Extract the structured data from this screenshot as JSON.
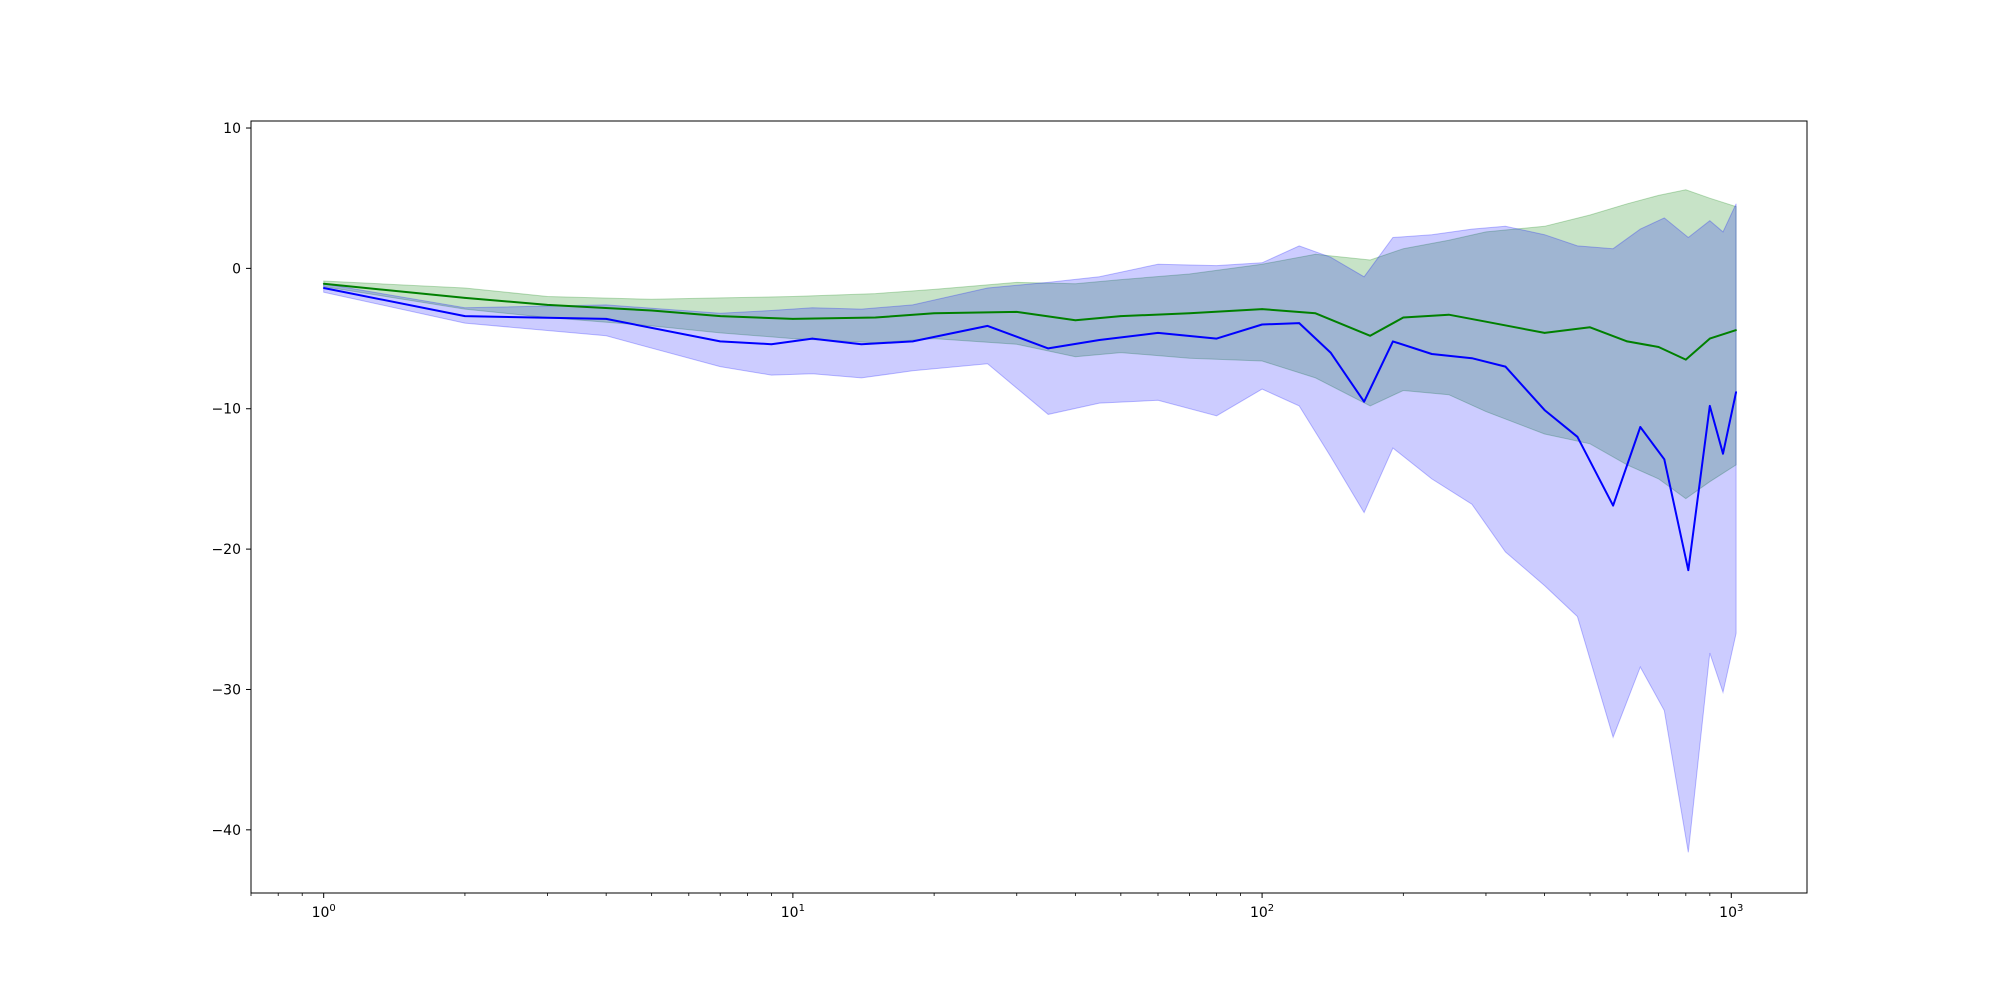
{
  "chart_data": {
    "type": "line",
    "title": "",
    "xlabel": "",
    "ylabel": "",
    "xscale": "log",
    "xlim": [
      0.7,
      1450
    ],
    "ylim": [
      -44.5,
      10.5
    ],
    "grid": false,
    "legend": "none",
    "x_ticks": [
      {
        "value": 1,
        "base": "10",
        "exp": "0"
      },
      {
        "value": 10,
        "base": "10",
        "exp": "1"
      },
      {
        "value": 100,
        "base": "10",
        "exp": "2"
      },
      {
        "value": 1000,
        "base": "10",
        "exp": "3"
      }
    ],
    "y_ticks": [
      {
        "value": 10,
        "label": "10"
      },
      {
        "value": 0,
        "label": "0"
      },
      {
        "value": -10,
        "label": "−10"
      },
      {
        "value": -20,
        "label": "−20"
      },
      {
        "value": -30,
        "label": "−30"
      },
      {
        "value": -40,
        "label": "−40"
      }
    ],
    "series": [
      {
        "color": "#008000",
        "band_color": "#008000",
        "band_opacity": 0.22,
        "points": [
          {
            "x": 1,
            "y": -1.1,
            "lo": -1.3,
            "hi": -0.9
          },
          {
            "x": 2,
            "y": -2.1,
            "lo": -2.9,
            "hi": -1.4
          },
          {
            "x": 3,
            "y": -2.6,
            "lo": -3.5,
            "hi": -2.0
          },
          {
            "x": 5,
            "y": -3.0,
            "lo": -4.1,
            "hi": -2.2
          },
          {
            "x": 7,
            "y": -3.4,
            "lo": -4.6,
            "hi": -2.1
          },
          {
            "x": 10,
            "y": -3.6,
            "lo": -5.0,
            "hi": -2.0
          },
          {
            "x": 15,
            "y": -3.5,
            "lo": -5.3,
            "hi": -1.8
          },
          {
            "x": 20,
            "y": -3.2,
            "lo": -5.0,
            "hi": -1.5
          },
          {
            "x": 30,
            "y": -3.1,
            "lo": -5.4,
            "hi": -1.0
          },
          {
            "x": 40,
            "y": -3.7,
            "lo": -6.3,
            "hi": -1.1
          },
          {
            "x": 50,
            "y": -3.4,
            "lo": -6.0,
            "hi": -0.8
          },
          {
            "x": 70,
            "y": -3.2,
            "lo": -6.4,
            "hi": -0.4
          },
          {
            "x": 100,
            "y": -2.9,
            "lo": -6.6,
            "hi": 0.3
          },
          {
            "x": 130,
            "y": -3.2,
            "lo": -7.8,
            "hi": 1.0
          },
          {
            "x": 170,
            "y": -4.8,
            "lo": -9.8,
            "hi": 0.6
          },
          {
            "x": 200,
            "y": -3.5,
            "lo": -8.7,
            "hi": 1.4
          },
          {
            "x": 250,
            "y": -3.3,
            "lo": -9.0,
            "hi": 2.0
          },
          {
            "x": 300,
            "y": -3.8,
            "lo": -10.2,
            "hi": 2.6
          },
          {
            "x": 400,
            "y": -4.6,
            "lo": -11.8,
            "hi": 3.0
          },
          {
            "x": 500,
            "y": -4.2,
            "lo": -12.5,
            "hi": 3.8
          },
          {
            "x": 600,
            "y": -5.2,
            "lo": -14.0,
            "hi": 4.6
          },
          {
            "x": 700,
            "y": -5.6,
            "lo": -15.0,
            "hi": 5.2
          },
          {
            "x": 800,
            "y": -6.5,
            "lo": -16.4,
            "hi": 5.6
          },
          {
            "x": 900,
            "y": -5.0,
            "lo": -15.2,
            "hi": 5.0
          },
          {
            "x": 1024,
            "y": -4.4,
            "lo": -14.0,
            "hi": 4.4
          }
        ]
      },
      {
        "color": "#0000ff",
        "band_color": "#0000ff",
        "band_opacity": 0.2,
        "points": [
          {
            "x": 1,
            "y": -1.4,
            "lo": -1.7,
            "hi": -1.1
          },
          {
            "x": 2,
            "y": -3.4,
            "lo": -3.9,
            "hi": -2.8
          },
          {
            "x": 4,
            "y": -3.6,
            "lo": -4.8,
            "hi": -2.6
          },
          {
            "x": 7,
            "y": -5.2,
            "lo": -7.0,
            "hi": -3.2
          },
          {
            "x": 9,
            "y": -5.4,
            "lo": -7.6,
            "hi": -3.0
          },
          {
            "x": 11,
            "y": -5.0,
            "lo": -7.5,
            "hi": -2.8
          },
          {
            "x": 14,
            "y": -5.4,
            "lo": -7.8,
            "hi": -2.9
          },
          {
            "x": 18,
            "y": -5.2,
            "lo": -7.3,
            "hi": -2.6
          },
          {
            "x": 26,
            "y": -4.1,
            "lo": -6.8,
            "hi": -1.4
          },
          {
            "x": 35,
            "y": -5.7,
            "lo": -10.4,
            "hi": -1.0
          },
          {
            "x": 45,
            "y": -5.1,
            "lo": -9.6,
            "hi": -0.6
          },
          {
            "x": 60,
            "y": -4.6,
            "lo": -9.4,
            "hi": 0.3
          },
          {
            "x": 80,
            "y": -5.0,
            "lo": -10.5,
            "hi": 0.2
          },
          {
            "x": 100,
            "y": -4.0,
            "lo": -8.6,
            "hi": 0.4
          },
          {
            "x": 120,
            "y": -3.9,
            "lo": -9.8,
            "hi": 1.6
          },
          {
            "x": 140,
            "y": -6.0,
            "lo": -13.4,
            "hi": 0.8
          },
          {
            "x": 165,
            "y": -9.5,
            "lo": -17.4,
            "hi": -0.6
          },
          {
            "x": 190,
            "y": -5.2,
            "lo": -12.8,
            "hi": 2.2
          },
          {
            "x": 230,
            "y": -6.1,
            "lo": -15.0,
            "hi": 2.4
          },
          {
            "x": 280,
            "y": -6.4,
            "lo": -16.8,
            "hi": 2.8
          },
          {
            "x": 330,
            "y": -7.0,
            "lo": -20.2,
            "hi": 3.0
          },
          {
            "x": 400,
            "y": -10.1,
            "lo": -22.6,
            "hi": 2.4
          },
          {
            "x": 470,
            "y": -12.0,
            "lo": -24.8,
            "hi": 1.6
          },
          {
            "x": 560,
            "y": -16.9,
            "lo": -33.4,
            "hi": 1.4
          },
          {
            "x": 640,
            "y": -11.3,
            "lo": -28.4,
            "hi": 2.8
          },
          {
            "x": 720,
            "y": -13.6,
            "lo": -31.5,
            "hi": 3.6
          },
          {
            "x": 810,
            "y": -21.5,
            "lo": -41.6,
            "hi": 2.2
          },
          {
            "x": 900,
            "y": -9.8,
            "lo": -27.4,
            "hi": 3.4
          },
          {
            "x": 960,
            "y": -13.2,
            "lo": -30.2,
            "hi": 2.6
          },
          {
            "x": 1024,
            "y": -8.8,
            "lo": -26.0,
            "hi": 4.6
          }
        ]
      }
    ]
  }
}
